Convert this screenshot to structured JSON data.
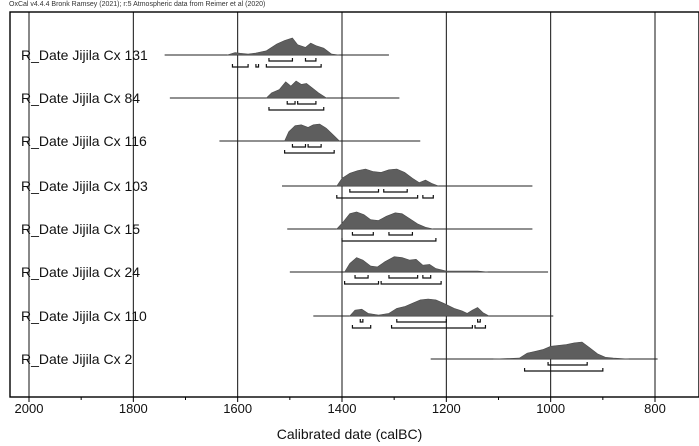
{
  "header": "OxCal v4.4.4 Bronk Ramsey (2021); r:5 Atmospheric data from Reimer et al (2020)",
  "chart_data": {
    "type": "multiplot-density",
    "xlabel": "Calibrated date (calBC)",
    "x_axis": {
      "reversed": true,
      "xlim": [
        2000,
        700
      ],
      "ticks": [
        2000,
        1800,
        1600,
        1400,
        1200,
        1000,
        800
      ],
      "minor_step": 100
    },
    "grid": "vertical lines at major ticks",
    "series": [
      {
        "name": "R_Date Jijila Cx",
        "id": "131",
        "range": [
          1740,
          1310
        ],
        "density": [
          [
            1620,
            0
          ],
          [
            1605,
            0.15
          ],
          [
            1595,
            0.1
          ],
          [
            1580,
            0.05
          ],
          [
            1565,
            0.12
          ],
          [
            1545,
            0.25
          ],
          [
            1525,
            0.65
          ],
          [
            1510,
            0.85
          ],
          [
            1495,
            1.0
          ],
          [
            1485,
            0.6
          ],
          [
            1470,
            0.45
          ],
          [
            1460,
            0.7
          ],
          [
            1450,
            0.55
          ],
          [
            1435,
            0.4
          ],
          [
            1420,
            0.05
          ],
          [
            1405,
            0
          ]
        ],
        "hpd68": [
          [
            1540,
            1495
          ],
          [
            1470,
            1450
          ]
        ],
        "hpd95": [
          [
            1610,
            1580
          ],
          [
            1565,
            1560
          ],
          [
            1545,
            1440
          ]
        ]
      },
      {
        "name": "R_Date Jijila Cx",
        "id": "84",
        "range": [
          1730,
          1290
        ],
        "density": [
          [
            1545,
            0
          ],
          [
            1535,
            0.3
          ],
          [
            1520,
            0.5
          ],
          [
            1508,
            0.95
          ],
          [
            1498,
            0.7
          ],
          [
            1488,
            1.0
          ],
          [
            1478,
            0.8
          ],
          [
            1468,
            0.85
          ],
          [
            1455,
            0.55
          ],
          [
            1445,
            0.3
          ],
          [
            1430,
            0
          ]
        ],
        "hpd68": [
          [
            1505,
            1490
          ],
          [
            1485,
            1450
          ]
        ],
        "hpd95": [
          [
            1540,
            1435
          ]
        ]
      },
      {
        "name": "R_Date Jijila Cx",
        "id": "116",
        "range": [
          1635,
          1250
        ],
        "density": [
          [
            1510,
            0
          ],
          [
            1502,
            0.55
          ],
          [
            1490,
            0.9
          ],
          [
            1478,
            0.95
          ],
          [
            1465,
            0.8
          ],
          [
            1455,
            0.95
          ],
          [
            1443,
            1.0
          ],
          [
            1430,
            0.75
          ],
          [
            1415,
            0.3
          ],
          [
            1405,
            0
          ]
        ],
        "hpd68": [
          [
            1495,
            1470
          ],
          [
            1465,
            1440
          ]
        ],
        "hpd95": [
          [
            1510,
            1415
          ]
        ]
      },
      {
        "name": "R_Date Jijila Cx",
        "id": "103",
        "range": [
          1515,
          1035
        ],
        "density": [
          [
            1410,
            0
          ],
          [
            1400,
            0.45
          ],
          [
            1385,
            0.75
          ],
          [
            1370,
            0.9
          ],
          [
            1355,
            1.0
          ],
          [
            1340,
            0.85
          ],
          [
            1325,
            0.8
          ],
          [
            1310,
            0.95
          ],
          [
            1295,
            1.0
          ],
          [
            1280,
            0.8
          ],
          [
            1265,
            0.45
          ],
          [
            1252,
            0.2
          ],
          [
            1240,
            0.35
          ],
          [
            1228,
            0.15
          ],
          [
            1215,
            0
          ]
        ],
        "hpd68": [
          [
            1385,
            1330
          ],
          [
            1320,
            1275
          ]
        ],
        "hpd95": [
          [
            1410,
            1255
          ],
          [
            1245,
            1225
          ]
        ]
      },
      {
        "name": "R_Date Jijila Cx",
        "id": "15",
        "range": [
          1505,
          1035
        ],
        "density": [
          [
            1410,
            0
          ],
          [
            1398,
            0.4
          ],
          [
            1385,
            0.9
          ],
          [
            1372,
            1.0
          ],
          [
            1358,
            0.85
          ],
          [
            1345,
            0.55
          ],
          [
            1330,
            0.5
          ],
          [
            1315,
            0.75
          ],
          [
            1298,
            0.95
          ],
          [
            1285,
            0.9
          ],
          [
            1270,
            0.6
          ],
          [
            1255,
            0.3
          ],
          [
            1240,
            0.1
          ],
          [
            1225,
            0
          ]
        ],
        "hpd68": [
          [
            1380,
            1340
          ],
          [
            1310,
            1265
          ]
        ],
        "hpd95": [
          [
            1400,
            1220
          ]
        ]
      },
      {
        "name": "R_Date Jijila Cx",
        "id": "24",
        "range": [
          1500,
          1005
        ],
        "density": [
          [
            1395,
            0
          ],
          [
            1385,
            0.5
          ],
          [
            1372,
            0.85
          ],
          [
            1360,
            0.7
          ],
          [
            1345,
            0.35
          ],
          [
            1332,
            0.3
          ],
          [
            1318,
            0.6
          ],
          [
            1300,
            0.9
          ],
          [
            1285,
            0.85
          ],
          [
            1270,
            0.7
          ],
          [
            1258,
            0.75
          ],
          [
            1245,
            0.4
          ],
          [
            1232,
            0.45
          ],
          [
            1220,
            0.2
          ],
          [
            1200,
            0.05
          ],
          [
            1140,
            0.05
          ],
          [
            1120,
            0
          ]
        ],
        "hpd68": [
          [
            1375,
            1350
          ],
          [
            1310,
            1255
          ],
          [
            1245,
            1230
          ]
        ],
        "hpd95": [
          [
            1395,
            1330
          ],
          [
            1325,
            1210
          ]
        ]
      },
      {
        "name": "R_Date Jijila Cx",
        "id": "110",
        "range": [
          1455,
          995
        ],
        "density": [
          [
            1385,
            0
          ],
          [
            1375,
            0.35
          ],
          [
            1362,
            0.4
          ],
          [
            1350,
            0.15
          ],
          [
            1330,
            0.05
          ],
          [
            1310,
            0.15
          ],
          [
            1295,
            0.45
          ],
          [
            1280,
            0.55
          ],
          [
            1265,
            0.75
          ],
          [
            1250,
            0.95
          ],
          [
            1235,
            1.0
          ],
          [
            1220,
            0.95
          ],
          [
            1205,
            0.75
          ],
          [
            1185,
            0.45
          ],
          [
            1170,
            0.3
          ],
          [
            1160,
            0.15
          ],
          [
            1150,
            0.35
          ],
          [
            1140,
            0.5
          ],
          [
            1130,
            0.2
          ],
          [
            1118,
            0
          ]
        ],
        "hpd68": [
          [
            1365,
            1360
          ],
          [
            1295,
            1200
          ],
          [
            1140,
            1135
          ]
        ],
        "hpd95": [
          [
            1380,
            1345
          ],
          [
            1305,
            1150
          ],
          [
            1145,
            1125
          ]
        ]
      },
      {
        "name": "R_Date Jijila Cx",
        "id": "2",
        "range": [
          1230,
          795
        ],
        "density": [
          [
            1110,
            0
          ],
          [
            1060,
            0.05
          ],
          [
            1045,
            0.35
          ],
          [
            1030,
            0.45
          ],
          [
            1015,
            0.55
          ],
          [
            1000,
            0.75
          ],
          [
            985,
            0.8
          ],
          [
            970,
            0.85
          ],
          [
            955,
            0.95
          ],
          [
            940,
            1.0
          ],
          [
            925,
            0.65
          ],
          [
            910,
            0.3
          ],
          [
            895,
            0.1
          ],
          [
            880,
            0.05
          ],
          [
            850,
            0
          ]
        ],
        "hpd68": [
          [
            1005,
            930
          ]
        ],
        "hpd95": [
          [
            1050,
            900
          ]
        ]
      }
    ]
  }
}
